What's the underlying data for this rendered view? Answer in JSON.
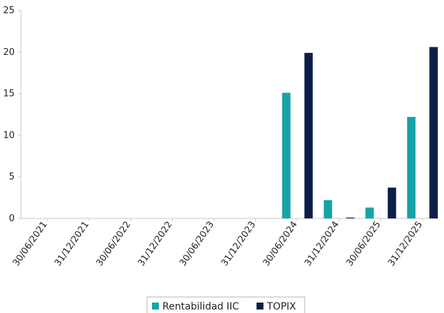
{
  "chart_data": {
    "type": "bar",
    "title": "",
    "xlabel": "",
    "ylabel": "",
    "categories": [
      "30/06/2021",
      "31/12/2021",
      "30/06/2022",
      "31/12/2022",
      "30/06/2023",
      "31/12/2023",
      "30/06/2024",
      "31/12/2024",
      "30/06/2025",
      "31/12/2025"
    ],
    "series": [
      {
        "name": "Rentabilidad IIC",
        "color": "#16a3a5",
        "values": [
          null,
          null,
          null,
          null,
          null,
          null,
          15.1,
          2.2,
          1.3,
          12.2
        ]
      },
      {
        "name": "TOPIX",
        "color": "#0d1e4a",
        "values": [
          null,
          null,
          null,
          null,
          null,
          null,
          19.9,
          0.1,
          3.7,
          20.6
        ]
      }
    ],
    "ylim": [
      0,
      25
    ],
    "yticks": [
      0,
      5,
      10,
      15,
      20,
      25
    ],
    "grid": false,
    "legend_position": "bottom-center"
  }
}
